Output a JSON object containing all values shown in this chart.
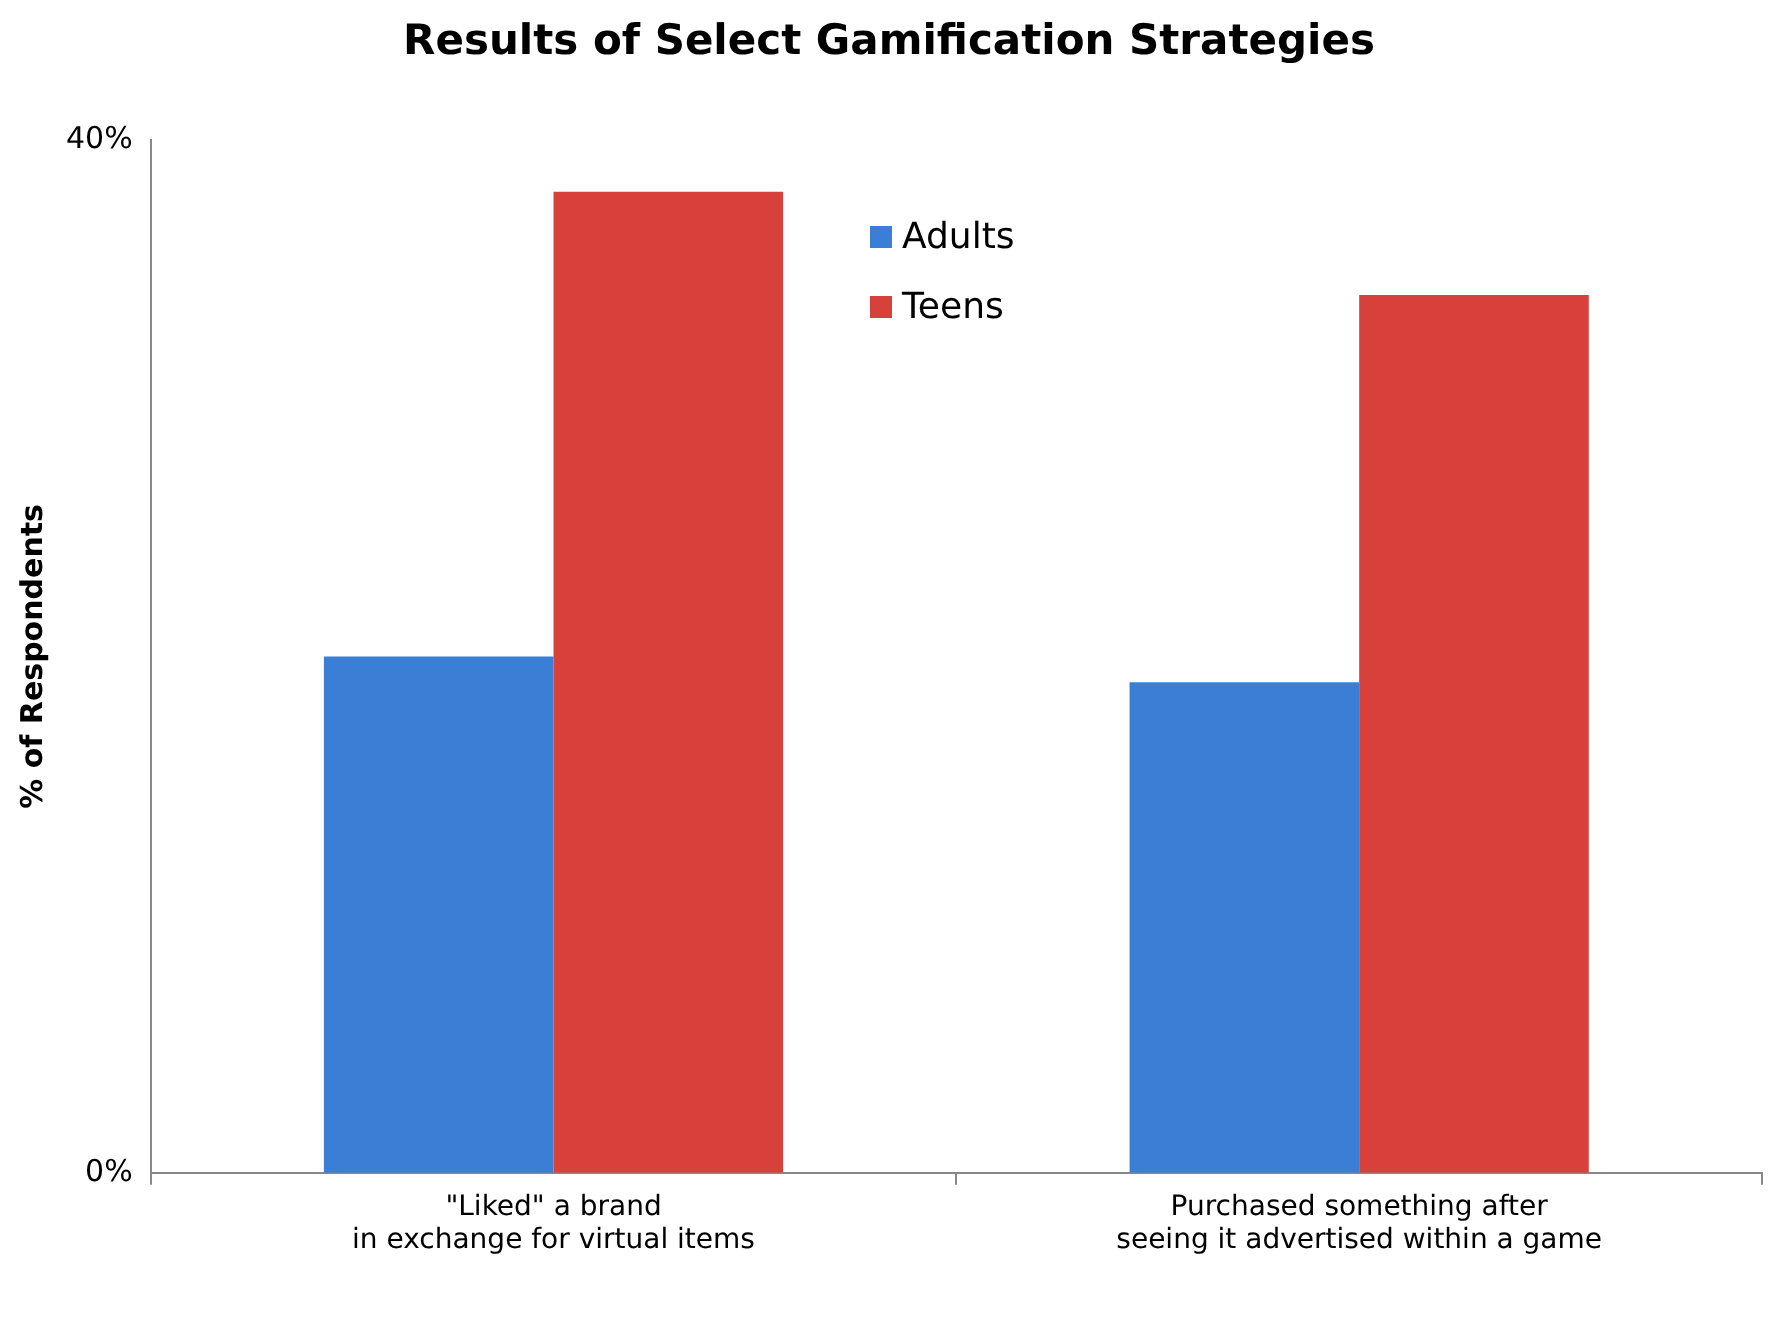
{
  "chart_data": {
    "type": "bar",
    "title": "Results of Select Gamification Strategies",
    "ylabel": "% of Respondents",
    "categories": [
      "\"Liked\" a brand\nin exchange for virtual items",
      "Purchased something after\nseeing it advertised within a game"
    ],
    "series": [
      {
        "name": "Adults",
        "color": "#3a7fd5",
        "values": [
          20,
          19
        ]
      },
      {
        "name": "Teens",
        "color": "#d8403c",
        "values": [
          38,
          34
        ]
      }
    ],
    "ylim": [
      0,
      40
    ],
    "yticks": [
      {
        "value": 0,
        "label": "0%"
      },
      {
        "value": 40,
        "label": "40%"
      }
    ],
    "grid": false,
    "legend": "top"
  }
}
